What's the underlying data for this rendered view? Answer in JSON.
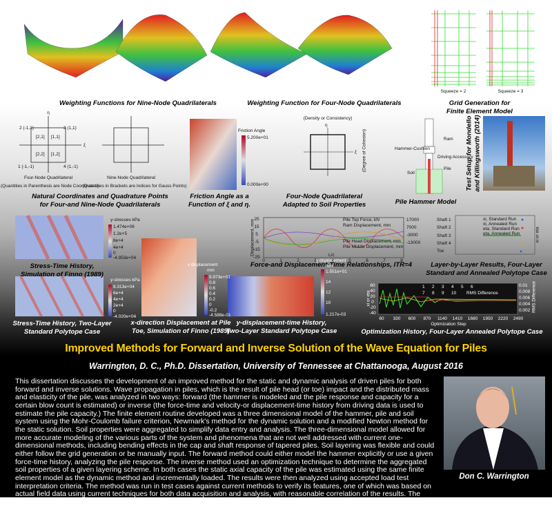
{
  "title": "Improved Methods for Forward and Inverse Solution of the Wave Equation for Piles",
  "subtitle": "Warrington, D. C., Ph.D. Dissertation, University of Tennessee at Chattanooga, August 2016",
  "abstract": "This dissertation discusses the development of an improved method for the static and dynamic analysis of driven piles for both forward and inverse solutions. Wave propagation in piles, which is the result of pile head (or toe) impact and the distributed mass and elasticity of the pile, was analyzed in two ways: forward (the hammer is modeled and the pile response and capacity for a certain blow count is estimated) or inverse (the force-time and velocity-or displacement-time history from driving data is used to estimate the pile capacity.) The finite element routine developed was a three dimensional model of the hammer, pile and soil system using the Mohr-Coulomb failure criterion, Newmark's method for the dynamic solution and a modified Newton method for the static solution. Soil properties were aggregated to simplify data entry and analysis. The three-dimensional model allowed for more accurate modeling of the various parts of the system and phenomena that are not well addressed with current one-dimensional methods, including bending effects in the cap and shaft response of tapered piles. Soil layering was flexible and could either follow the grid generation or be manually input. The forward method could either model the hammer explicitly or use a given force-time history, analyzing the pile response. The inverse method used an optimization technique to determine the aggregated soil properties of a given layering scheme. In both cases the static axial capacity of the pile was estimated using the same finite element model as the dynamic method and incrementally loaded. The results were then analyzed using accepted load test interpretation criteria. The method was run in test cases against current methods to verify its features, one of which was based on actual field data using current techniques for both data acquisition and analysis, with reasonable correlation of the results. The routine was standalone and did not require additional code to use.",
  "author": "Don C. Warrington",
  "figures": [
    {
      "caption": [
        "Weighting Functions for Nine-Node Quadrilaterals"
      ],
      "labels": []
    },
    {
      "caption": [
        "Weighting Function for Four-Node Quadrilaterals"
      ],
      "labels": []
    },
    {
      "caption": [
        "Grid Generation for",
        "Finite Element Model"
      ],
      "labels": [
        "Squeeze = 2",
        "Squeeze = 3"
      ]
    },
    {
      "caption": [
        "Natural Coordinates and Quadrature Points",
        "for Four-and Nine-Node Quadrilaterals"
      ],
      "labels": [
        "η",
        "ξ",
        "2 (-1,1)",
        "3 (1,1)",
        "1 (-1,-1)",
        "4 (1,-1)",
        "[2,1]",
        "[1,1]",
        "[2,2]",
        "[1,2]",
        "Four-Node Quadrilateral",
        "Nine-Node Quadrilateral",
        "(Quantities in Parenthesis are Node Coordinates)",
        "(Quantities in Brackets are Indices for Gauss Points)"
      ]
    },
    {
      "caption": [
        "Friction Angle as a",
        "Function of ξ and η."
      ],
      "labels": [
        "Friction Angle",
        "5.200e+01",
        "0.000e+00"
      ]
    },
    {
      "caption": [
        "Four-Node Quadrilateral",
        "Adapted to Soil Properties"
      ],
      "labels": [
        "(Density or Consistency)",
        "η",
        "ξ",
        "(Degree of Cohesion)"
      ]
    },
    {
      "caption": [
        "Pile Hammer Model"
      ],
      "labels": [
        "Ram",
        "Hammer-Cushion",
        "Driving Accessory",
        "Soil",
        "Pile"
      ]
    },
    {
      "caption": [
        "Test Setup for Mondello",
        "and Killingsworth (2014)"
      ],
      "labels": []
    },
    {
      "caption": [
        "Stress-Time History,",
        "Simulation of Finno (1989)"
      ],
      "labels": [
        "y-stresses kPa",
        "1.474e+06",
        "1.2e+5",
        "8e+4",
        "4e+4",
        "0",
        "-4.953e+04"
      ]
    },
    {
      "caption": [
        "Force-and Displacement-Time Relationships, ITR=4"
      ],
      "labels": [
        "Displacement, mm",
        "L/c",
        "Pile Top Force, kN",
        "Ram Displacement, mm",
        "Pile Head Displacement, mm",
        "Pile Middle Displacement, mm",
        "25",
        "15",
        "5",
        "-5",
        "-15",
        "-25",
        "17000",
        "7000",
        "-3000",
        "-13000",
        "0",
        "1",
        "2",
        "3",
        "4",
        "5",
        "6",
        "7",
        "8"
      ]
    },
    {
      "caption": [
        "Layer-by-Layer Results, Four-Layer",
        "Standard and Annealed Polytope Case"
      ],
      "labels": [
        "Shaft 1",
        "Shaft 2",
        "Shaft 3",
        "Shaft 4",
        "Toe",
        "xi, Standard Run",
        "xi, Annealed Run",
        "eta, Standard Run",
        "eta, Annealed Run",
        "xi or eta"
      ]
    },
    {
      "caption": [
        "Stress-Time History, Two-Layer",
        "Standard Polytope Case"
      ],
      "labels": [
        "y-stresses kPa",
        "8.313e+04",
        "6e+4",
        "4e+4",
        "2e+4",
        "0",
        "-4.020e+04"
      ]
    },
    {
      "caption": [
        "x-direction Displacement at Pile",
        "Toe, Simulation of Finno (1989)"
      ],
      "labels": [
        "x displacement",
        "mm",
        "9.973e+01",
        "0.8",
        "0.6",
        "0.4",
        "0.2",
        "0",
        "-0.2",
        "-4.588e-01"
      ]
    },
    {
      "caption": [
        "y-displacement-time History,",
        "Two-Layer Standard Polytope Case"
      ],
      "labels": [
        "y displacement",
        "mm",
        "1.551e+01",
        "14",
        "12",
        "10",
        "1.217e-03"
      ]
    },
    {
      "caption": [
        "Optimization History, Four-Layer Annealed Polytope Case"
      ],
      "labels": [
        "Optimization Step",
        "xi or eta",
        "RMS Difference",
        "60",
        "330",
        "600",
        "870",
        "1140",
        "1410",
        "1680",
        "1950",
        "2220",
        "2490",
        "1",
        "2",
        "3",
        "4",
        "5",
        "6",
        "7",
        "8",
        "9",
        "10",
        "RMS Difference",
        "0.01",
        "0.008",
        "0.006",
        "0.004",
        "0.002",
        "60",
        "40",
        "20",
        "0",
        "-20",
        "-40"
      ]
    }
  ]
}
